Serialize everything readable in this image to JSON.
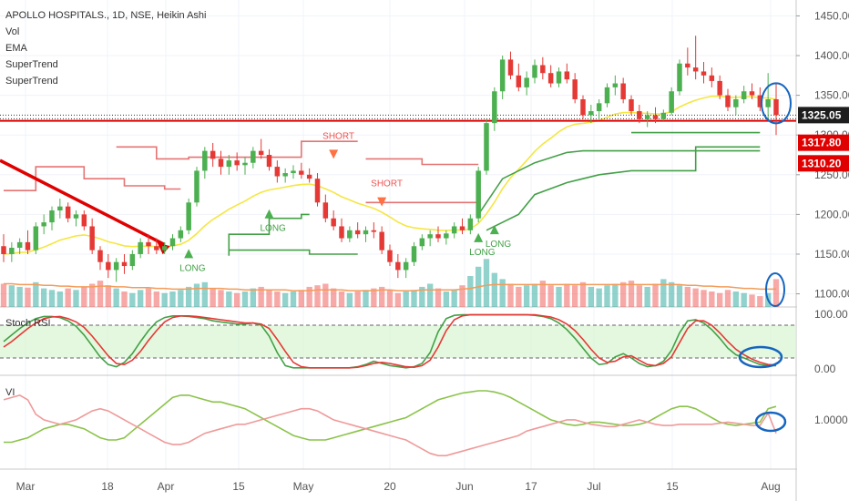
{
  "header": {
    "title": "APOLLO HOSPITALS., 1D, NSE, Heikin Ashi",
    "indicators": [
      "Vol",
      "EMA",
      "SuperTrend",
      "SuperTrend"
    ]
  },
  "colors": {
    "up": "#26a69a",
    "down": "#ef5350",
    "candle_up": "#4caf50",
    "candle_down": "#e53935",
    "ema": "#f5e642",
    "supertrend_up": "#43a047",
    "supertrend_down": "#e57373",
    "stoch_k": "#43a047",
    "stoch_d": "#e53935",
    "vi_plus": "#8bc34a",
    "vi_minus": "#ef9a9a",
    "highlight": "#1565c0",
    "red_line": "#e00000"
  },
  "price_axis": {
    "ticks": [
      "1450.00",
      "1400.00",
      "1350.00",
      "1300.00",
      "1250.00",
      "1200.00",
      "1150.00",
      "1100.00"
    ],
    "tags": [
      {
        "value": 1325.05,
        "label": "1325.05",
        "color": "#1e1e1e"
      },
      {
        "value": 1317.8,
        "label": "1317.80",
        "color": "#e00000"
      },
      {
        "value": 1310.2,
        "label": "1310.20",
        "color": "#e00000"
      }
    ]
  },
  "stoch_panel": {
    "label": "Stoch RSI",
    "ticks": [
      "100.00",
      "0.00"
    ]
  },
  "vi_panel": {
    "label": "VI",
    "ticks": [
      "1.0000"
    ]
  },
  "time_axis": {
    "labels": [
      "Mar",
      "18",
      "Apr",
      "15",
      "May",
      "20",
      "Jun",
      "17",
      "Jul",
      "15",
      "Aug"
    ]
  },
  "signals": [
    {
      "type": "LONG",
      "label": "LONG"
    },
    {
      "type": "LONG",
      "label": "LONG"
    },
    {
      "type": "SHORT",
      "label": "SHORT"
    },
    {
      "type": "SHORT",
      "label": "SHORT"
    },
    {
      "type": "LONG",
      "label": "LONG"
    },
    {
      "type": "LONG",
      "label": "LONG"
    }
  ],
  "chart_data": {
    "type": "candlestick",
    "ylim": [
      1080,
      1470
    ],
    "candles": [
      [
        1160,
        1175,
        1140,
        1150
      ],
      [
        1150,
        1165,
        1140,
        1158
      ],
      [
        1158,
        1170,
        1150,
        1165
      ],
      [
        1165,
        1180,
        1150,
        1155
      ],
      [
        1155,
        1190,
        1150,
        1185
      ],
      [
        1185,
        1200,
        1175,
        1190
      ],
      [
        1190,
        1210,
        1180,
        1205
      ],
      [
        1205,
        1220,
        1195,
        1210
      ],
      [
        1210,
        1215,
        1190,
        1195
      ],
      [
        1195,
        1205,
        1185,
        1200
      ],
      [
        1200,
        1205,
        1180,
        1185
      ],
      [
        1185,
        1195,
        1150,
        1155
      ],
      [
        1155,
        1160,
        1130,
        1140
      ],
      [
        1140,
        1150,
        1120,
        1130
      ],
      [
        1130,
        1145,
        1115,
        1140
      ],
      [
        1140,
        1150,
        1125,
        1135
      ],
      [
        1135,
        1155,
        1130,
        1150
      ],
      [
        1150,
        1170,
        1145,
        1165
      ],
      [
        1165,
        1175,
        1150,
        1160
      ],
      [
        1160,
        1170,
        1150,
        1155
      ],
      [
        1155,
        1165,
        1150,
        1160
      ],
      [
        1160,
        1175,
        1155,
        1170
      ],
      [
        1170,
        1185,
        1165,
        1180
      ],
      [
        1180,
        1220,
        1175,
        1215
      ],
      [
        1215,
        1260,
        1210,
        1255
      ],
      [
        1255,
        1285,
        1245,
        1280
      ],
      [
        1280,
        1290,
        1260,
        1270
      ],
      [
        1270,
        1280,
        1250,
        1260
      ],
      [
        1260,
        1275,
        1250,
        1268
      ],
      [
        1268,
        1278,
        1255,
        1262
      ],
      [
        1262,
        1272,
        1250,
        1265
      ],
      [
        1265,
        1285,
        1258,
        1280
      ],
      [
        1280,
        1295,
        1270,
        1275
      ],
      [
        1275,
        1282,
        1255,
        1260
      ],
      [
        1260,
        1268,
        1240,
        1248
      ],
      [
        1248,
        1258,
        1240,
        1252
      ],
      [
        1252,
        1262,
        1245,
        1255
      ],
      [
        1255,
        1265,
        1245,
        1250
      ],
      [
        1250,
        1258,
        1240,
        1245
      ],
      [
        1245,
        1252,
        1210,
        1215
      ],
      [
        1215,
        1225,
        1190,
        1195
      ],
      [
        1195,
        1205,
        1180,
        1185
      ],
      [
        1185,
        1195,
        1165,
        1170
      ],
      [
        1170,
        1185,
        1165,
        1180
      ],
      [
        1180,
        1190,
        1170,
        1175
      ],
      [
        1175,
        1185,
        1165,
        1180
      ],
      [
        1180,
        1190,
        1170,
        1178
      ],
      [
        1178,
        1185,
        1150,
        1155
      ],
      [
        1155,
        1162,
        1135,
        1140
      ],
      [
        1140,
        1150,
        1120,
        1130
      ],
      [
        1130,
        1145,
        1120,
        1140
      ],
      [
        1140,
        1165,
        1135,
        1160
      ],
      [
        1160,
        1175,
        1155,
        1170
      ],
      [
        1170,
        1180,
        1160,
        1175
      ],
      [
        1175,
        1185,
        1165,
        1170
      ],
      [
        1170,
        1180,
        1162,
        1176
      ],
      [
        1176,
        1190,
        1170,
        1185
      ],
      [
        1185,
        1195,
        1175,
        1180
      ],
      [
        1180,
        1200,
        1175,
        1195
      ],
      [
        1195,
        1260,
        1190,
        1255
      ],
      [
        1255,
        1320,
        1250,
        1315
      ],
      [
        1315,
        1360,
        1305,
        1355
      ],
      [
        1355,
        1400,
        1345,
        1395
      ],
      [
        1395,
        1405,
        1370,
        1375
      ],
      [
        1375,
        1390,
        1355,
        1360
      ],
      [
        1360,
        1380,
        1350,
        1372
      ],
      [
        1372,
        1395,
        1365,
        1388
      ],
      [
        1388,
        1398,
        1370,
        1378
      ],
      [
        1378,
        1388,
        1360,
        1365
      ],
      [
        1365,
        1385,
        1360,
        1380
      ],
      [
        1380,
        1390,
        1365,
        1370
      ],
      [
        1370,
        1378,
        1340,
        1345
      ],
      [
        1345,
        1350,
        1320,
        1325
      ],
      [
        1325,
        1338,
        1315,
        1330
      ],
      [
        1330,
        1345,
        1320,
        1340
      ],
      [
        1340,
        1365,
        1335,
        1360
      ],
      [
        1360,
        1375,
        1350,
        1365
      ],
      [
        1365,
        1372,
        1340,
        1345
      ],
      [
        1345,
        1350,
        1325,
        1330
      ],
      [
        1330,
        1338,
        1315,
        1320
      ],
      [
        1320,
        1330,
        1310,
        1325
      ],
      [
        1325,
        1335,
        1315,
        1320
      ],
      [
        1320,
        1332,
        1318,
        1328
      ],
      [
        1328,
        1360,
        1325,
        1355
      ],
      [
        1355,
        1395,
        1350,
        1390
      ],
      [
        1390,
        1410,
        1375,
        1385
      ],
      [
        1385,
        1425,
        1370,
        1380
      ],
      [
        1380,
        1392,
        1365,
        1375
      ],
      [
        1375,
        1385,
        1360,
        1368
      ],
      [
        1368,
        1375,
        1345,
        1350
      ],
      [
        1350,
        1358,
        1330,
        1335
      ],
      [
        1335,
        1350,
        1325,
        1345
      ],
      [
        1345,
        1362,
        1340,
        1355
      ],
      [
        1355,
        1365,
        1345,
        1350
      ],
      [
        1350,
        1360,
        1330,
        1335
      ],
      [
        1335,
        1378,
        1320,
        1345
      ],
      [
        1345,
        1365,
        1300,
        1325
      ]
    ],
    "volume": [
      30,
      28,
      26,
      25,
      32,
      24,
      22,
      20,
      24,
      22,
      26,
      30,
      34,
      28,
      24,
      20,
      18,
      22,
      24,
      20,
      18,
      20,
      22,
      26,
      30,
      32,
      24,
      22,
      20,
      18,
      20,
      24,
      26,
      22,
      20,
      18,
      20,
      22,
      26,
      28,
      30,
      24,
      20,
      18,
      20,
      22,
      24,
      26,
      22,
      18,
      20,
      22,
      26,
      30,
      24,
      20,
      22,
      28,
      40,
      52,
      62,
      44,
      36,
      30,
      26,
      28,
      30,
      34,
      28,
      26,
      30,
      28,
      32,
      26,
      24,
      28,
      30,
      32,
      34,
      28,
      26,
      30,
      36,
      32,
      28,
      26,
      24,
      22,
      20,
      18,
      22,
      20,
      18,
      16,
      14,
      18,
      36
    ],
    "vol_ma": [
      30,
      30,
      29,
      29,
      29,
      28,
      28,
      27,
      27,
      26,
      26,
      26,
      27,
      27,
      26,
      26,
      25,
      25,
      25,
      24,
      24,
      23,
      23,
      23,
      24,
      24,
      24,
      24,
      23,
      23,
      22,
      22,
      22,
      22,
      22,
      22,
      21,
      21,
      21,
      22,
      22,
      22,
      22,
      21,
      21,
      21,
      21,
      22,
      22,
      21,
      21,
      21,
      22,
      22,
      22,
      22,
      22,
      23,
      24,
      26,
      28,
      29,
      29,
      29,
      29,
      29,
      29,
      29,
      29,
      29,
      29,
      29,
      29,
      29,
      29,
      29,
      29,
      29,
      29,
      29,
      29,
      29,
      29,
      29,
      29,
      28,
      28,
      27,
      27,
      26,
      26,
      25,
      24,
      24,
      23,
      23,
      23
    ],
    "stoch_k": [
      50,
      62,
      74,
      84,
      92,
      96,
      96,
      94,
      88,
      78,
      62,
      42,
      22,
      8,
      4,
      12,
      28,
      50,
      70,
      86,
      94,
      97,
      97,
      96,
      94,
      92,
      88,
      86,
      84,
      82,
      82,
      84,
      80,
      60,
      30,
      6,
      2,
      2,
      2,
      2,
      2,
      2,
      2,
      2,
      4,
      8,
      14,
      10,
      6,
      4,
      2,
      4,
      10,
      30,
      68,
      92,
      98,
      99,
      99,
      99,
      99,
      99,
      99,
      99,
      99,
      99,
      98,
      96,
      92,
      84,
      72,
      56,
      38,
      20,
      8,
      10,
      22,
      28,
      20,
      10,
      4,
      6,
      14,
      34,
      66,
      88,
      90,
      84,
      72,
      56,
      38,
      26,
      20,
      14,
      8,
      6,
      6
    ],
    "stoch_d": [
      40,
      50,
      62,
      74,
      84,
      92,
      95,
      96,
      92,
      86,
      76,
      60,
      42,
      24,
      10,
      8,
      16,
      32,
      52,
      70,
      86,
      94,
      97,
      97,
      96,
      94,
      92,
      90,
      88,
      86,
      84,
      84,
      82,
      74,
      54,
      32,
      12,
      4,
      2,
      2,
      2,
      2,
      2,
      2,
      3,
      6,
      10,
      12,
      10,
      7,
      4,
      3,
      6,
      16,
      40,
      70,
      90,
      97,
      99,
      99,
      99,
      99,
      99,
      99,
      99,
      99,
      99,
      97,
      95,
      90,
      82,
      70,
      54,
      36,
      20,
      12,
      14,
      22,
      24,
      16,
      8,
      6,
      10,
      22,
      48,
      74,
      88,
      88,
      80,
      66,
      50,
      36,
      26,
      18,
      12,
      8,
      7
    ],
    "vi_plus": [
      0.8,
      0.8,
      0.82,
      0.84,
      0.88,
      0.92,
      0.94,
      0.96,
      0.96,
      0.94,
      0.92,
      0.88,
      0.84,
      0.82,
      0.82,
      0.84,
      0.9,
      0.96,
      1.02,
      1.08,
      1.14,
      1.2,
      1.22,
      1.22,
      1.2,
      1.18,
      1.16,
      1.16,
      1.14,
      1.12,
      1.1,
      1.06,
      1.02,
      0.98,
      0.94,
      0.9,
      0.86,
      0.84,
      0.82,
      0.82,
      0.82,
      0.84,
      0.86,
      0.88,
      0.9,
      0.92,
      0.94,
      0.96,
      0.98,
      1.0,
      1.02,
      1.06,
      1.1,
      1.14,
      1.18,
      1.2,
      1.22,
      1.24,
      1.25,
      1.26,
      1.26,
      1.25,
      1.23,
      1.2,
      1.16,
      1.12,
      1.08,
      1.04,
      1.0,
      0.98,
      0.96,
      0.95,
      0.96,
      0.98,
      0.98,
      0.97,
      0.96,
      0.95,
      0.95,
      0.96,
      0.98,
      1.02,
      1.06,
      1.1,
      1.12,
      1.12,
      1.1,
      1.06,
      1.02,
      0.98,
      0.96,
      0.95,
      0.96,
      0.97,
      0.98,
      1.1,
      1.12
    ],
    "vi_minus": [
      1.18,
      1.2,
      1.22,
      1.18,
      1.05,
      1.0,
      0.98,
      0.96,
      0.98,
      1.0,
      1.04,
      1.08,
      1.1,
      1.08,
      1.04,
      1.0,
      0.96,
      0.92,
      0.88,
      0.84,
      0.8,
      0.78,
      0.78,
      0.8,
      0.84,
      0.88,
      0.9,
      0.92,
      0.94,
      0.96,
      0.96,
      0.98,
      1.0,
      1.02,
      1.04,
      1.06,
      1.08,
      1.1,
      1.1,
      1.08,
      1.04,
      1.0,
      0.98,
      0.96,
      0.94,
      0.92,
      0.9,
      0.88,
      0.86,
      0.84,
      0.82,
      0.78,
      0.74,
      0.7,
      0.68,
      0.68,
      0.7,
      0.72,
      0.74,
      0.76,
      0.78,
      0.8,
      0.82,
      0.84,
      0.86,
      0.9,
      0.92,
      0.94,
      0.96,
      0.98,
      1.0,
      1.0,
      0.98,
      0.96,
      0.95,
      0.94,
      0.94,
      0.96,
      0.98,
      1.0,
      0.98,
      0.96,
      0.95,
      0.95,
      0.96,
      0.96,
      0.96,
      0.96,
      0.96,
      0.97,
      0.98,
      0.97,
      0.96,
      0.95,
      0.95,
      1.06,
      0.88
    ]
  }
}
